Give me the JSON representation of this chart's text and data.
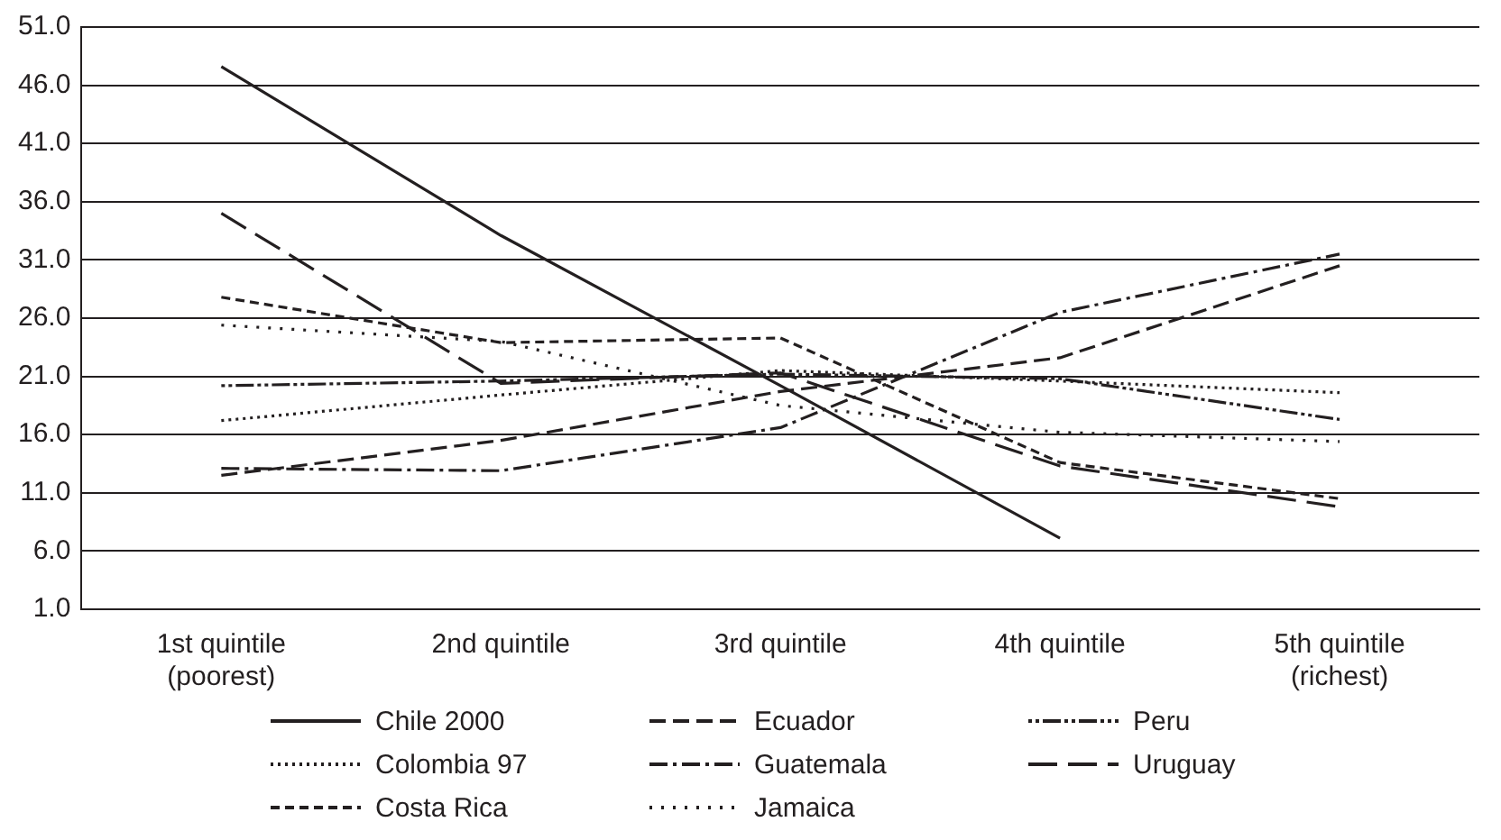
{
  "chart_data": {
    "type": "line",
    "categories": [
      "1st quintile\n(poorest)",
      "2nd quintile",
      "3rd quintile",
      "4th quintile",
      "5th quintile\n(richest)"
    ],
    "ylim": [
      1,
      51
    ],
    "yticks": [
      {
        "value": 1,
        "label": "1.0"
      },
      {
        "value": 6,
        "label": "6.0"
      },
      {
        "value": 11,
        "label": "11.0"
      },
      {
        "value": 16,
        "label": "16.0"
      },
      {
        "value": 21,
        "label": "21.0"
      },
      {
        "value": 26,
        "label": "26.0"
      },
      {
        "value": 31,
        "label": "31.0"
      },
      {
        "value": 36,
        "label": "36.0"
      },
      {
        "value": 41,
        "label": "41.0"
      },
      {
        "value": 46,
        "label": "46.0"
      },
      {
        "value": 51,
        "label": "51.0"
      }
    ],
    "grid": "y",
    "legend": "bottom",
    "marker": "none",
    "series": [
      {
        "name": "Chile 2000",
        "color": "#231f20",
        "line_style": "solid",
        "values": [
          47.6,
          33.1,
          20.2,
          7.1,
          null
        ]
      },
      {
        "name": "Colombia 97",
        "color": "#231f20",
        "line_style": "dotted",
        "values": [
          17.2,
          19.4,
          21.5,
          20.6,
          19.6
        ]
      },
      {
        "name": "Costa Rica",
        "color": "#231f20",
        "line_style": "dashed",
        "values": [
          27.8,
          23.9,
          24.3,
          13.6,
          10.5
        ]
      },
      {
        "name": "Ecuador",
        "color": "#231f20",
        "line_style": "dashed",
        "values": [
          12.5,
          15.5,
          19.7,
          22.6,
          30.5
        ]
      },
      {
        "name": "Guatemala",
        "color": "#231f20",
        "line_style": "dashed",
        "values": [
          13.1,
          12.9,
          16.6,
          26.5,
          31.5
        ]
      },
      {
        "name": "Jamaica",
        "color": "#231f20",
        "line_style": "dotted",
        "values": [
          25.4,
          24.0,
          18.5,
          16.2,
          15.4
        ]
      },
      {
        "name": "Peru",
        "color": "#231f20",
        "line_style": "dashed",
        "values": [
          20.2,
          20.6,
          21.2,
          20.8,
          17.3
        ]
      },
      {
        "name": "Uruguay",
        "color": "#231f20",
        "line_style": "dashed",
        "values": [
          35.0,
          20.4,
          21.3,
          13.3,
          9.8
        ]
      }
    ]
  }
}
